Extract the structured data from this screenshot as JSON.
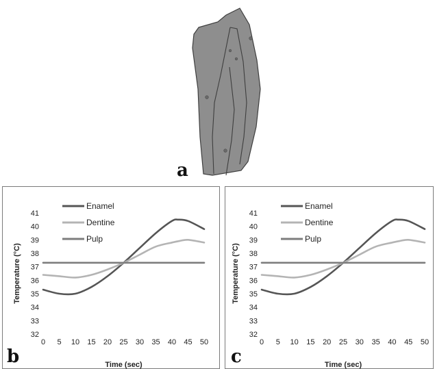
{
  "panel_labels": [
    "a",
    "b",
    "c"
  ],
  "colors": {
    "enamel": "#555555",
    "dentine": "#b4b4b4",
    "pulp": "#7d7d7d",
    "tooth_fill": "#8e8e8e",
    "tooth_stroke": "#3e3e3e"
  },
  "chart_data": [
    {
      "type": "line",
      "xlabel": "Time (sec)",
      "ylabel": "Temperature (°C)",
      "xlim": [
        0,
        50
      ],
      "ylim": [
        32,
        41
      ],
      "xticks": [
        0,
        5,
        10,
        15,
        20,
        25,
        30,
        35,
        40,
        45,
        50
      ],
      "yticks": [
        32,
        33,
        34,
        35,
        36,
        37,
        38,
        39,
        40,
        41
      ],
      "grid": false,
      "legend": "top-left",
      "x": [
        0,
        5,
        10,
        15,
        20,
        25,
        30,
        35,
        40,
        42,
        45,
        50
      ],
      "series": [
        {
          "name": "Enamel",
          "values": [
            35.3,
            35.0,
            35.0,
            35.5,
            36.3,
            37.3,
            38.4,
            39.5,
            40.4,
            40.5,
            40.4,
            39.8
          ]
        },
        {
          "name": "Dentine",
          "values": [
            36.4,
            36.3,
            36.2,
            36.4,
            36.8,
            37.3,
            37.9,
            38.5,
            38.8,
            38.9,
            39.0,
            38.8
          ]
        },
        {
          "name": "Pulp",
          "values": [
            37.3,
            37.3,
            37.3,
            37.3,
            37.3,
            37.3,
            37.3,
            37.3,
            37.3,
            37.3,
            37.3,
            37.3
          ]
        }
      ]
    },
    {
      "type": "line",
      "xlabel": "Time (sec)",
      "ylabel": "Temperature (°C)",
      "xlim": [
        0,
        50
      ],
      "ylim": [
        32,
        41
      ],
      "xticks": [
        0,
        5,
        10,
        15,
        20,
        25,
        30,
        35,
        40,
        45,
        50
      ],
      "yticks": [
        32,
        33,
        34,
        35,
        36,
        37,
        38,
        39,
        40,
        41
      ],
      "grid": false,
      "legend": "top-left",
      "x": [
        0,
        5,
        10,
        15,
        20,
        25,
        30,
        35,
        40,
        42,
        45,
        50
      ],
      "series": [
        {
          "name": "Enamel",
          "values": [
            35.3,
            35.0,
            35.0,
            35.5,
            36.3,
            37.3,
            38.4,
            39.5,
            40.4,
            40.5,
            40.4,
            39.8
          ]
        },
        {
          "name": "Dentine",
          "values": [
            36.4,
            36.3,
            36.2,
            36.4,
            36.8,
            37.3,
            37.9,
            38.5,
            38.8,
            38.9,
            39.0,
            38.8
          ]
        },
        {
          "name": "Pulp",
          "values": [
            37.3,
            37.3,
            37.3,
            37.3,
            37.3,
            37.3,
            37.3,
            37.3,
            37.3,
            37.3,
            37.3,
            37.3
          ]
        }
      ]
    }
  ]
}
